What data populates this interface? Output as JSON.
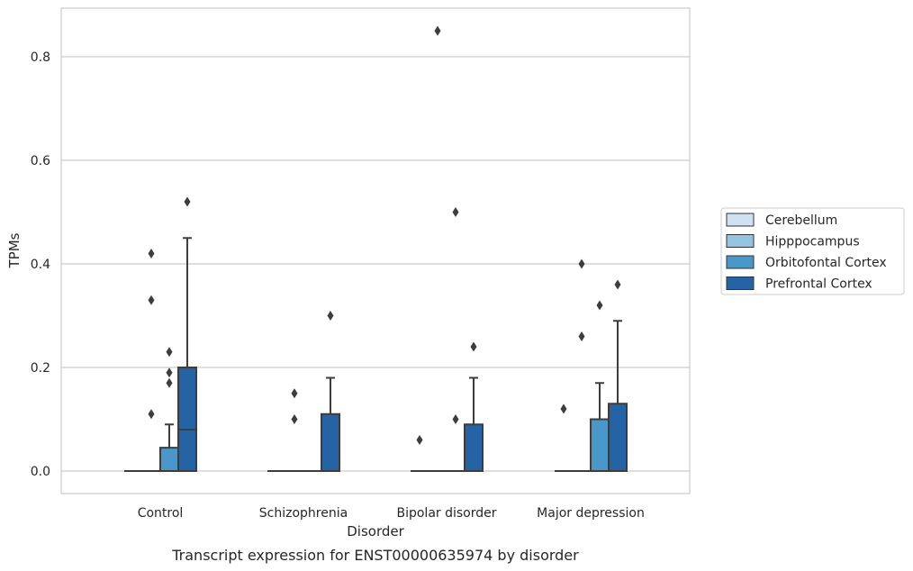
{
  "chart_data": {
    "type": "box",
    "title": "",
    "caption": "Transcript expression for ENST00000635974 by disorder",
    "xlabel": "Disorder",
    "ylabel": "TPMs",
    "ylim": [
      -0.04,
      0.89
    ],
    "yticks": [
      "0.0",
      "0.2",
      "0.4",
      "0.6",
      "0.8"
    ],
    "ytick_values": [
      0.0,
      0.2,
      0.4,
      0.6,
      0.8
    ],
    "grid": true,
    "legend_position": "right",
    "categories": [
      "Control",
      "Schizophrenia",
      "Bipolar disorder",
      "Major depression"
    ],
    "series": [
      {
        "name": "Cerebellum",
        "color": "#d0e1f2",
        "boxes": [
          {
            "q1": 0,
            "median": 0,
            "q3": 0,
            "whisker_low": 0,
            "whisker_high": 0,
            "outliers": []
          },
          {
            "q1": 0,
            "median": 0,
            "q3": 0,
            "whisker_low": 0,
            "whisker_high": 0,
            "outliers": []
          },
          {
            "q1": 0,
            "median": 0,
            "q3": 0,
            "whisker_low": 0,
            "whisker_high": 0,
            "outliers": [
              0.06
            ]
          },
          {
            "q1": 0,
            "median": 0,
            "q3": 0,
            "whisker_low": 0,
            "whisker_high": 0,
            "outliers": [
              0.12
            ]
          }
        ]
      },
      {
        "name": "Hipppocampus",
        "color": "#94c4df",
        "boxes": [
          {
            "q1": 0,
            "median": 0,
            "q3": 0,
            "whisker_low": 0,
            "whisker_high": 0,
            "outliers": [
              0.11,
              0.33,
              0.42
            ]
          },
          {
            "q1": 0,
            "median": 0,
            "q3": 0,
            "whisker_low": 0,
            "whisker_high": 0,
            "outliers": [
              0.1,
              0.15
            ]
          },
          {
            "q1": 0,
            "median": 0,
            "q3": 0,
            "whisker_low": 0,
            "whisker_high": 0,
            "outliers": [
              0.85
            ]
          },
          {
            "q1": 0,
            "median": 0,
            "q3": 0,
            "whisker_low": 0,
            "whisker_high": 0,
            "outliers": [
              0.26,
              0.4
            ]
          }
        ]
      },
      {
        "name": "Orbitofontal Cortex",
        "color": "#4a98c9",
        "boxes": [
          {
            "q1": 0,
            "median": 0,
            "q3": 0.045,
            "whisker_low": 0,
            "whisker_high": 0.09,
            "outliers": [
              0.17,
              0.19,
              0.23
            ]
          },
          {
            "q1": 0,
            "median": 0,
            "q3": 0,
            "whisker_low": 0,
            "whisker_high": 0,
            "outliers": []
          },
          {
            "q1": 0,
            "median": 0,
            "q3": 0,
            "whisker_low": 0,
            "whisker_high": 0,
            "outliers": [
              0.1,
              0.5
            ]
          },
          {
            "q1": 0,
            "median": 0,
            "q3": 0.1,
            "whisker_low": 0,
            "whisker_high": 0.17,
            "outliers": [
              0.32
            ]
          }
        ]
      },
      {
        "name": "Prefrontal Cortex",
        "color": "#2464a4",
        "boxes": [
          {
            "q1": 0,
            "median": 0.08,
            "q3": 0.2,
            "whisker_low": 0,
            "whisker_high": 0.45,
            "outliers": [
              0.52
            ]
          },
          {
            "q1": 0,
            "median": 0,
            "q3": 0.11,
            "whisker_low": 0,
            "whisker_high": 0.18,
            "outliers": [
              0.3
            ]
          },
          {
            "q1": 0,
            "median": 0,
            "q3": 0.09,
            "whisker_low": 0,
            "whisker_high": 0.18,
            "outliers": [
              0.24
            ]
          },
          {
            "q1": 0,
            "median": 0,
            "q3": 0.13,
            "whisker_low": 0,
            "whisker_high": 0.29,
            "outliers": [
              0.36
            ]
          }
        ]
      }
    ],
    "colors": {
      "grid": "#cccccc",
      "frame": "#cccccc",
      "box_edge": "#3d3d3d",
      "outlier": "#3d3d3d"
    }
  }
}
